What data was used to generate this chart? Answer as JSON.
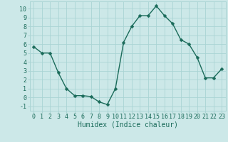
{
  "x": [
    0,
    1,
    2,
    3,
    4,
    5,
    6,
    7,
    8,
    9,
    10,
    11,
    12,
    13,
    14,
    15,
    16,
    17,
    18,
    19,
    20,
    21,
    22,
    23
  ],
  "y": [
    5.7,
    5.0,
    5.0,
    2.8,
    1.0,
    0.2,
    0.2,
    0.1,
    -0.5,
    -0.8,
    1.0,
    6.2,
    8.0,
    9.2,
    9.2,
    10.3,
    9.2,
    8.3,
    6.5,
    6.0,
    4.5,
    2.2,
    2.2,
    3.2
  ],
  "xlabel": "Humidex (Indice chaleur)",
  "ylim": [
    -1.5,
    10.8
  ],
  "xlim": [
    -0.5,
    23.5
  ],
  "yticks": [
    -1,
    0,
    1,
    2,
    3,
    4,
    5,
    6,
    7,
    8,
    9,
    10
  ],
  "xticks": [
    0,
    1,
    2,
    3,
    4,
    5,
    6,
    7,
    8,
    9,
    10,
    11,
    12,
    13,
    14,
    15,
    16,
    17,
    18,
    19,
    20,
    21,
    22,
    23
  ],
  "line_color": "#1a6b5a",
  "marker_color": "#1a6b5a",
  "bg_color": "#cce8e8",
  "grid_color": "#aad4d4",
  "tick_label_color": "#1a6b5a",
  "xlabel_color": "#1a6b5a",
  "xlabel_fontsize": 7,
  "tick_fontsize": 6,
  "line_width": 1.0,
  "marker_size": 2.5
}
